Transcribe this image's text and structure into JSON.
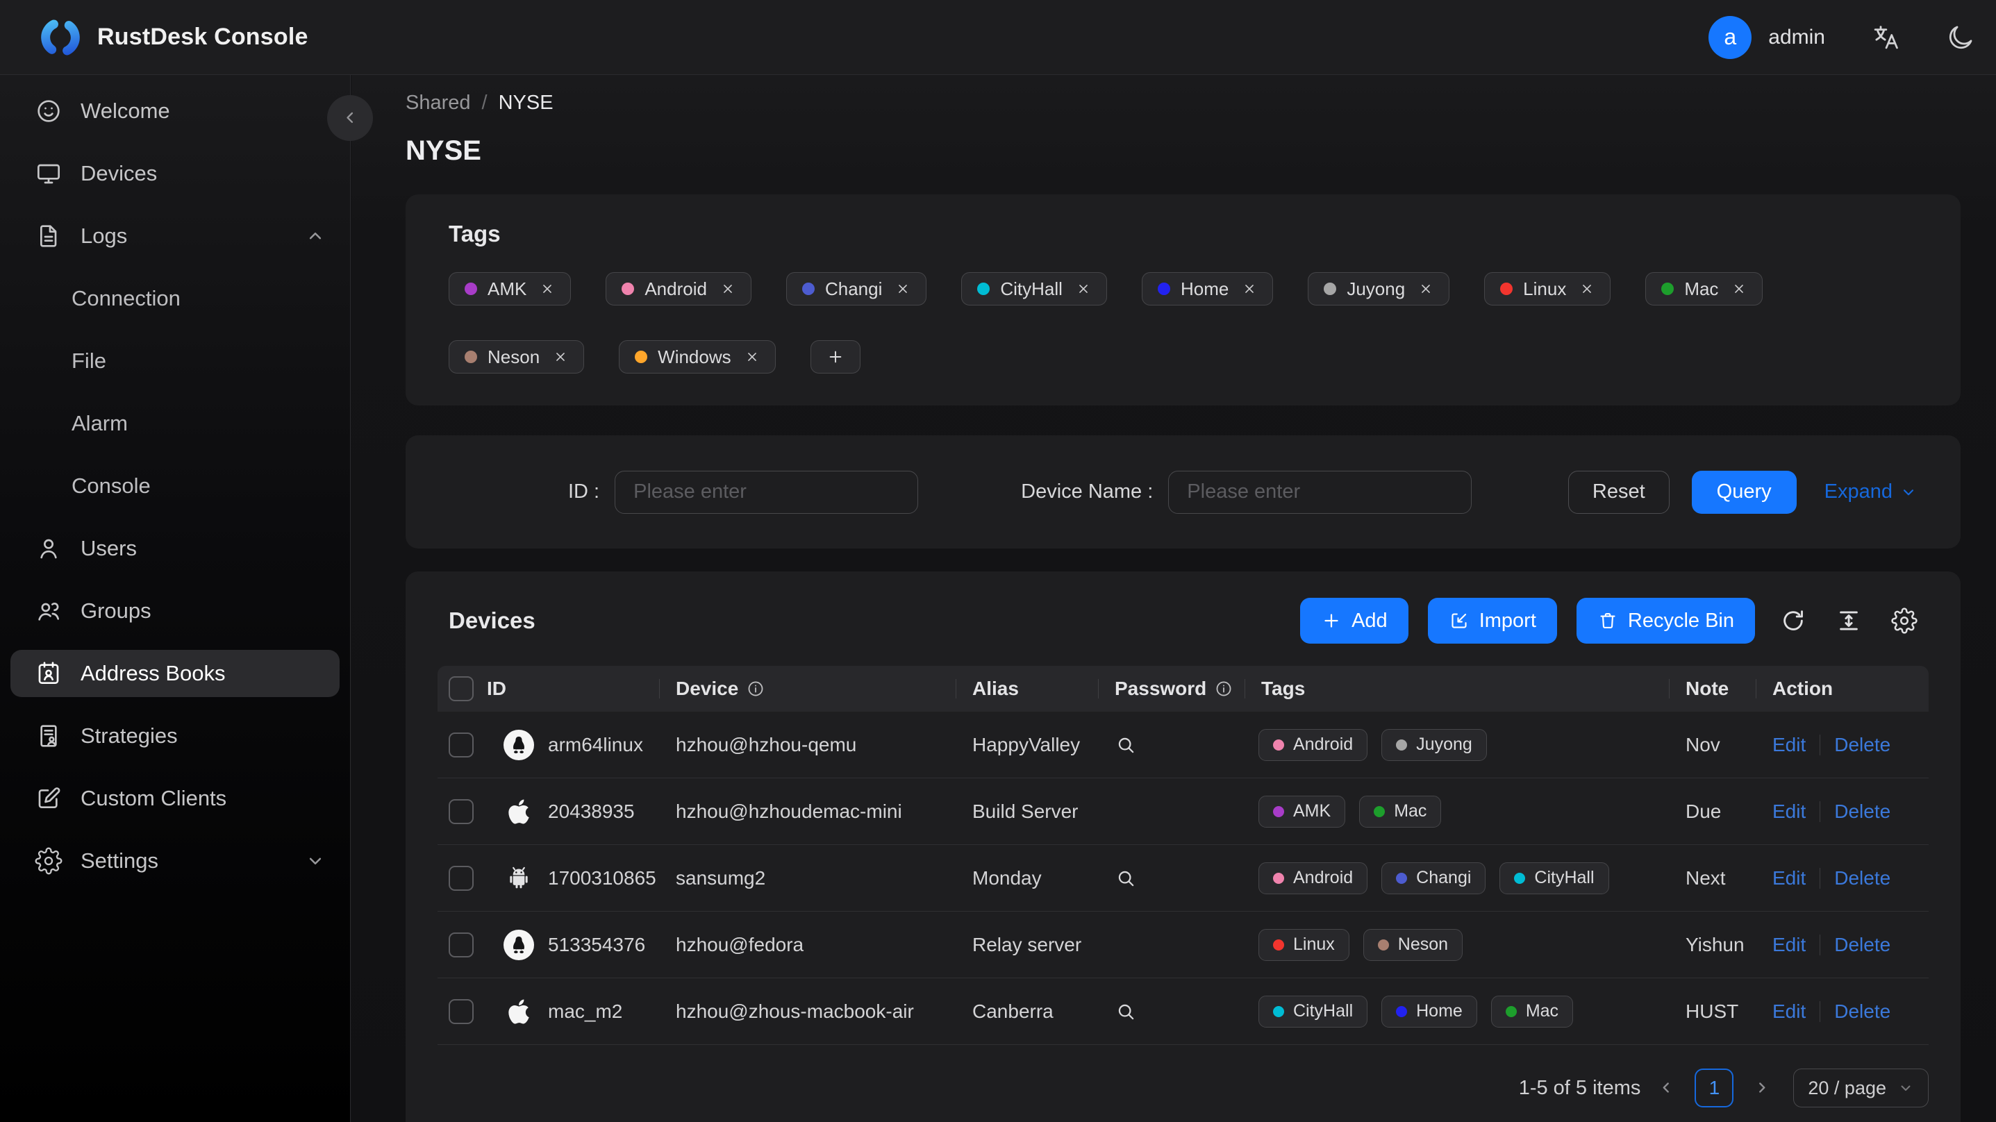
{
  "topbar": {
    "title": "RustDesk Console",
    "user_initial": "a",
    "username": "admin"
  },
  "sidebar": {
    "items": [
      {
        "label": "Welcome",
        "icon": "smiley-icon"
      },
      {
        "label": "Devices",
        "icon": "monitor-icon"
      },
      {
        "label": "Logs",
        "icon": "file-icon",
        "expanded": true,
        "caret": "chevron-up-icon",
        "children": [
          {
            "label": "Connection"
          },
          {
            "label": "File"
          },
          {
            "label": "Alarm"
          },
          {
            "label": "Console"
          }
        ]
      },
      {
        "label": "Users",
        "icon": "person-icon"
      },
      {
        "label": "Groups",
        "icon": "people-icon"
      },
      {
        "label": "Address Books",
        "icon": "address-book-icon",
        "active": true
      },
      {
        "label": "Strategies",
        "icon": "strategy-icon"
      },
      {
        "label": "Custom Clients",
        "icon": "edit-square-icon"
      },
      {
        "label": "Settings",
        "icon": "gear-icon",
        "caret": "chevron-down-icon"
      }
    ]
  },
  "breadcrumb": {
    "parent": "Shared",
    "separator": "/",
    "current": "NYSE"
  },
  "page_title": "NYSE",
  "tag_colors": {
    "AMK": "#a83cc8",
    "Android": "#ef83ad",
    "Changi": "#4d5cd0",
    "CityHall": "#00bcd4",
    "Home": "#2222f0",
    "Juyong": "#a6a6a6",
    "Linux": "#f2352e",
    "Mac": "#1d9e2c",
    "Neson": "#a87f70",
    "Windows": "#ffa62b"
  },
  "tags_card": {
    "title": "Tags",
    "tags": [
      "AMK",
      "Android",
      "Changi",
      "CityHall",
      "Home",
      "Juyong",
      "Linux",
      "Mac",
      "Neson",
      "Windows"
    ]
  },
  "filter": {
    "id_label": "ID :",
    "device_label": "Device Name :",
    "placeholder": "Please enter",
    "reset_label": "Reset",
    "query_label": "Query",
    "expand_label": "Expand"
  },
  "devices": {
    "title": "Devices",
    "add_label": "Add",
    "import_label": "Import",
    "recycle_label": "Recycle Bin",
    "columns": [
      {
        "label": "ID"
      },
      {
        "label": "Device",
        "info": true
      },
      {
        "label": "Alias"
      },
      {
        "label": "Password",
        "info": true
      },
      {
        "label": "Tags"
      },
      {
        "label": "Note"
      },
      {
        "label": "Action"
      }
    ],
    "actions": {
      "edit": "Edit",
      "delete": "Delete"
    },
    "rows": [
      {
        "os": "linux",
        "id": "arm64linux",
        "device": "hzhou@hzhou-qemu",
        "alias": "HappyValley",
        "has_password": true,
        "tags": [
          "Android",
          "Juyong"
        ],
        "note": "Nov"
      },
      {
        "os": "apple",
        "id": "20438935",
        "device": "hzhou@hzhoudemac-mini",
        "alias": "Build Server",
        "has_password": false,
        "tags": [
          "AMK",
          "Mac"
        ],
        "note": "Due"
      },
      {
        "os": "android",
        "id": "1700310865",
        "device": "sansumg2",
        "alias": "Monday",
        "has_password": true,
        "tags": [
          "Android",
          "Changi",
          "CityHall"
        ],
        "note": "Next"
      },
      {
        "os": "linux",
        "id": "513354376",
        "device": "hzhou@fedora",
        "alias": "Relay server",
        "has_password": false,
        "tags": [
          "Linux",
          "Neson"
        ],
        "note": "Yishun"
      },
      {
        "os": "apple",
        "id": "mac_m2",
        "device": "hzhou@zhous-macbook-air",
        "alias": "Canberra",
        "has_password": true,
        "tags": [
          "CityHall",
          "Home",
          "Mac"
        ],
        "note": "HUST"
      }
    ],
    "pagination": {
      "total": "1-5 of 5 items",
      "page": "1",
      "page_size": "20 / page"
    }
  },
  "colors": {
    "accent": "#1677ff",
    "link": "#3b79db",
    "expand_link": "#1668dc"
  }
}
